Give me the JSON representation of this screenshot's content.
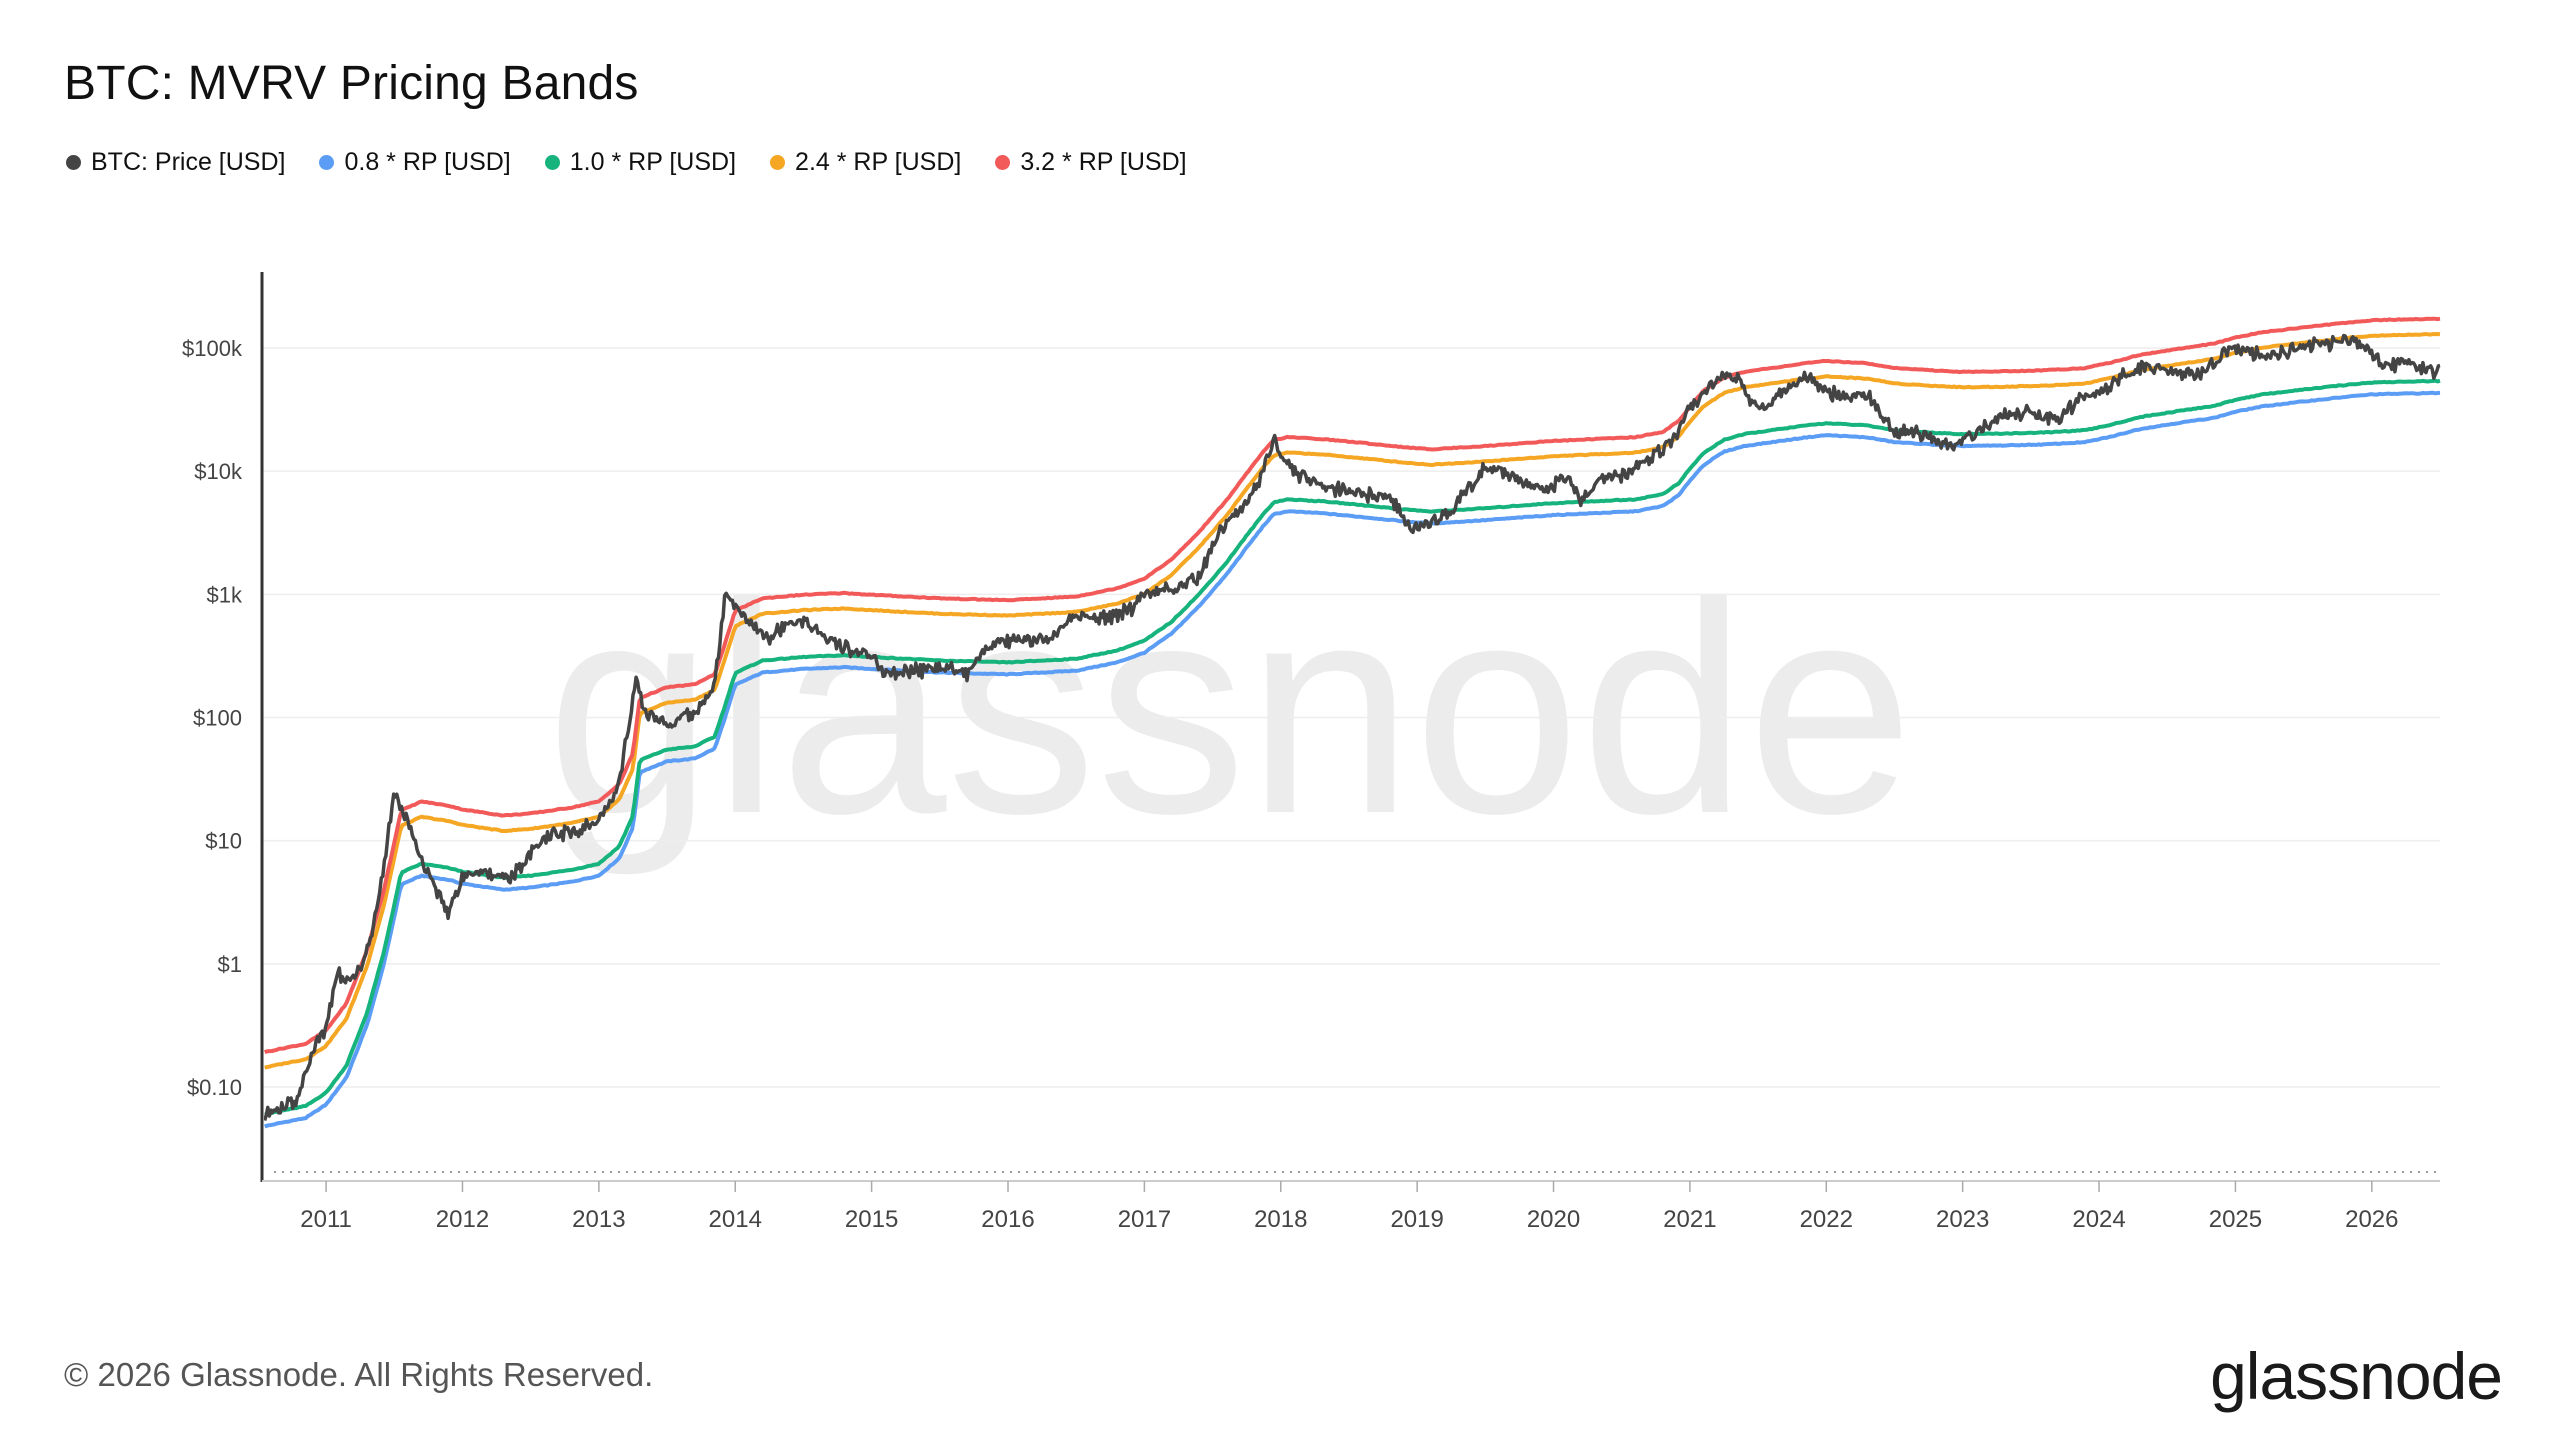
{
  "title": "BTC: MVRV Pricing Bands",
  "footer": "© 2026 Glassnode. All Rights Reserved.",
  "brand": "glassnode",
  "watermark": "glassnode",
  "chart_data": {
    "type": "line",
    "yscale": "log",
    "ylim": [
      0.03,
      1000000
    ],
    "xlim": [
      2010.53,
      2026.5
    ],
    "grid": true,
    "legend_position": "top-left",
    "y_ticks": [
      {
        "value": 0.1,
        "label": "$0.10"
      },
      {
        "value": 1,
        "label": "$1"
      },
      {
        "value": 10,
        "label": "$10"
      },
      {
        "value": 100,
        "label": "$100"
      },
      {
        "value": 1000,
        "label": "$1k"
      },
      {
        "value": 10000,
        "label": "$10k"
      },
      {
        "value": 100000,
        "label": "$100k"
      }
    ],
    "x_ticks": [
      {
        "value": 2011,
        "label": "2011"
      },
      {
        "value": 2012,
        "label": "2012"
      },
      {
        "value": 2013,
        "label": "2013"
      },
      {
        "value": 2014,
        "label": "2014"
      },
      {
        "value": 2015,
        "label": "2015"
      },
      {
        "value": 2016,
        "label": "2016"
      },
      {
        "value": 2017,
        "label": "2017"
      },
      {
        "value": 2018,
        "label": "2018"
      },
      {
        "value": 2019,
        "label": "2019"
      },
      {
        "value": 2020,
        "label": "2020"
      },
      {
        "value": 2021,
        "label": "2021"
      },
      {
        "value": 2022,
        "label": "2022"
      },
      {
        "value": 2023,
        "label": "2023"
      },
      {
        "value": 2024,
        "label": "2024"
      },
      {
        "value": 2025,
        "label": "2025"
      },
      {
        "value": 2026,
        "label": "2026"
      }
    ],
    "realized_price": {
      "name": "1.0 * RP [USD]",
      "color": "#16b37d",
      "x": [
        2010.55,
        2010.7,
        2010.85,
        2011.0,
        2011.15,
        2011.3,
        2011.42,
        2011.5,
        2011.55,
        2011.7,
        2011.9,
        2012.0,
        2012.3,
        2012.5,
        2012.8,
        2013.0,
        2013.15,
        2013.25,
        2013.3,
        2013.5,
        2013.7,
        2013.85,
        2013.92,
        2014.0,
        2014.2,
        2014.5,
        2014.8,
        2015.0,
        2015.5,
        2016.0,
        2016.5,
        2016.8,
        2017.0,
        2017.2,
        2017.4,
        2017.6,
        2017.75,
        2017.88,
        2017.95,
        2018.05,
        2018.3,
        2018.6,
        2018.9,
        2019.1,
        2019.3,
        2019.5,
        2019.8,
        2020.0,
        2020.3,
        2020.6,
        2020.8,
        2020.92,
        2021.0,
        2021.1,
        2021.25,
        2021.4,
        2021.6,
        2021.85,
        2022.0,
        2022.3,
        2022.5,
        2022.8,
        2023.0,
        2023.3,
        2023.6,
        2023.9,
        2024.1,
        2024.3,
        2024.6,
        2024.85,
        2025.0,
        2025.2,
        2025.5,
        2025.8,
        2026.0,
        2026.3,
        2026.5
      ],
      "y": [
        0.06,
        0.065,
        0.07,
        0.09,
        0.15,
        0.4,
        1.2,
        3.0,
        5.5,
        6.5,
        6.0,
        5.6,
        5.0,
        5.2,
        5.8,
        6.5,
        9,
        16,
        45,
        55,
        58,
        70,
        120,
        230,
        290,
        310,
        320,
        310,
        290,
        280,
        300,
        350,
        420,
        600,
        1000,
        1800,
        3000,
        4600,
        5600,
        5900,
        5700,
        5300,
        4900,
        4700,
        4850,
        5000,
        5300,
        5500,
        5700,
        5900,
        6500,
        8000,
        10500,
        14000,
        18000,
        20000,
        21500,
        23500,
        24500,
        23500,
        21500,
        20500,
        20000,
        20200,
        20600,
        21500,
        24000,
        27500,
        31000,
        34000,
        38000,
        42000,
        46000,
        50000,
        52500,
        53500,
        54000
      ]
    },
    "series": [
      {
        "name": "BTC: Price [USD]",
        "color": "#444444",
        "multiplier": null
      },
      {
        "name": "0.8 * RP [USD]",
        "color": "#5b9cf5",
        "multiplier": 0.8
      },
      {
        "name": "1.0 * RP [USD]",
        "color": "#16b37d",
        "multiplier": 1.0
      },
      {
        "name": "2.4 * RP [USD]",
        "color": "#f5a623",
        "multiplier": 2.4
      },
      {
        "name": "3.2 * RP [USD]",
        "color": "#f25a5a",
        "multiplier": 3.2
      }
    ],
    "price": {
      "name": "BTC: Price [USD]",
      "color": "#444444",
      "x": [
        2010.55,
        2010.65,
        2010.8,
        2010.9,
        2011.0,
        2011.08,
        2011.15,
        2011.25,
        2011.35,
        2011.45,
        2011.5,
        2011.6,
        2011.7,
        2011.8,
        2011.9,
        2012.0,
        2012.15,
        2012.35,
        2012.5,
        2012.62,
        2012.8,
        2013.0,
        2013.15,
        2013.27,
        2013.35,
        2013.5,
        2013.7,
        2013.85,
        2013.93,
        2014.0,
        2014.1,
        2014.25,
        2014.4,
        2014.5,
        2014.7,
        2014.85,
        2015.0,
        2015.1,
        2015.3,
        2015.5,
        2015.7,
        2015.85,
        2016.0,
        2016.3,
        2016.5,
        2016.7,
        2016.9,
        2017.0,
        2017.2,
        2017.4,
        2017.5,
        2017.6,
        2017.75,
        2017.85,
        2017.95,
        2018.05,
        2018.15,
        2018.3,
        2018.45,
        2018.6,
        2018.8,
        2018.95,
        2019.1,
        2019.3,
        2019.5,
        2019.65,
        2019.8,
        2019.95,
        2020.1,
        2020.2,
        2020.35,
        2020.5,
        2020.65,
        2020.8,
        2020.9,
        2021.0,
        2021.1,
        2021.25,
        2021.35,
        2021.45,
        2021.55,
        2021.7,
        2021.85,
        2021.95,
        2022.1,
        2022.3,
        2022.4,
        2022.5,
        2022.7,
        2022.85,
        2023.0,
        2023.15,
        2023.3,
        2023.5,
        2023.7,
        2023.85,
        2024.0,
        2024.2,
        2024.3,
        2024.5,
        2024.7,
        2024.85,
        2024.92,
        2025.0,
        2025.2,
        2025.3,
        2025.5,
        2025.7,
        2025.8,
        2025.9,
        2026.0,
        2026.1,
        2026.25,
        2026.35,
        2026.45,
        2026.5
      ],
      "y": [
        0.06,
        0.065,
        0.08,
        0.2,
        0.3,
        0.85,
        0.7,
        0.9,
        2.0,
        10,
        25,
        14,
        7,
        4,
        2.5,
        5,
        5.5,
        5,
        8,
        11,
        12,
        14,
        30,
        200,
        110,
        90,
        110,
        180,
        1100,
        800,
        620,
        450,
        600,
        600,
        420,
        350,
        300,
        220,
        240,
        250,
        230,
        380,
        420,
        450,
        650,
        630,
        750,
        1000,
        1100,
        1400,
        2500,
        4000,
        5500,
        9000,
        18000,
        11000,
        9000,
        7500,
        7000,
        6500,
        6300,
        3500,
        3700,
        5500,
        11000,
        10000,
        8000,
        7200,
        9000,
        6000,
        8500,
        9300,
        11500,
        15000,
        19000,
        32000,
        45000,
        60000,
        56000,
        36000,
        33000,
        45000,
        62000,
        48000,
        40000,
        40000,
        30000,
        21000,
        20000,
        17000,
        17000,
        23000,
        28000,
        30000,
        27000,
        37000,
        44000,
        62000,
        70000,
        65000,
        60000,
        75000,
        96000,
        100000,
        85000,
        85000,
        104000,
        110000,
        120000,
        110000,
        90000,
        70000,
        78000,
        70000,
        62000,
        68000
      ]
    }
  }
}
